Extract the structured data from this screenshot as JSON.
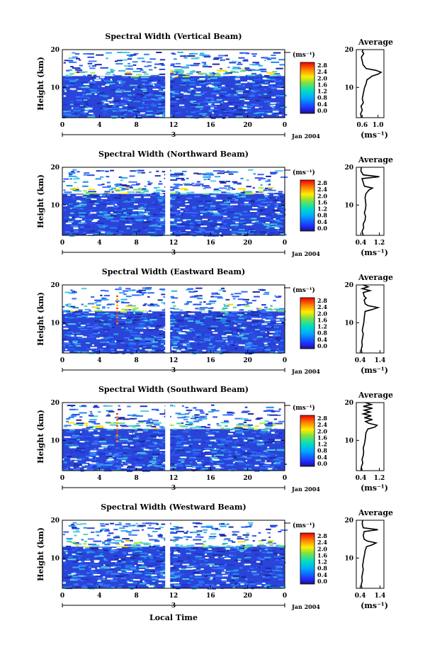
{
  "chart_data": [
    {
      "type": "heatmap",
      "title": "Spectral Width (Vertical Beam)",
      "ylabel": "Height (km)",
      "xticks": [
        "0",
        "4",
        "8",
        "12",
        "16",
        "20",
        "0"
      ],
      "yticks": [
        "20",
        "10"
      ],
      "date_tick": "3",
      "date_label": "Jan 2004",
      "ylim": [
        2,
        20
      ],
      "colorbar": {
        "unit": "(ms⁻¹)",
        "ticks": [
          "2.8",
          "2.4",
          "2.0",
          "1.6",
          "1.2",
          "0.8",
          "0.4",
          "0.0"
        ]
      },
      "average": {
        "title": "Average",
        "xlabel": "(ms⁻¹)",
        "xticks": [
          "0.6",
          "1.0"
        ],
        "xlim": [
          0.45,
          1.15
        ],
        "yticks": [
          "20",
          "10"
        ],
        "profile": [
          [
            2,
            0.58
          ],
          [
            3,
            0.56
          ],
          [
            4,
            0.6
          ],
          [
            5,
            0.57
          ],
          [
            6,
            0.63
          ],
          [
            7,
            0.6
          ],
          [
            8,
            0.62
          ],
          [
            9,
            0.64
          ],
          [
            10,
            0.66
          ],
          [
            11,
            0.7
          ],
          [
            12,
            0.72
          ],
          [
            13,
            0.85
          ],
          [
            13.5,
            1.0
          ],
          [
            14,
            1.08
          ],
          [
            14.5,
            0.95
          ],
          [
            15,
            0.7
          ],
          [
            16,
            0.62
          ],
          [
            17,
            0.6
          ],
          [
            18,
            0.58
          ],
          [
            19,
            0.64
          ],
          [
            19.5,
            0.6
          ],
          [
            20,
            0.62
          ]
        ]
      }
    },
    {
      "type": "heatmap",
      "title": "Spectral Width (Northward Beam)",
      "ylabel": "Height (km)",
      "xticks": [
        "0",
        "4",
        "8",
        "12",
        "16",
        "20",
        "0"
      ],
      "yticks": [
        "20",
        "10"
      ],
      "date_tick": "3",
      "date_label": "Jan 2004",
      "ylim": [
        2,
        20
      ],
      "colorbar": {
        "unit": "(ms⁻¹)",
        "ticks": [
          "2.8",
          "2.4",
          "2.0",
          "1.6",
          "1.2",
          "0.8",
          "0.4",
          "0.0"
        ]
      },
      "average": {
        "title": "Average",
        "xlabel": "(ms⁻¹)",
        "xticks": [
          "0.4",
          "1.2"
        ],
        "xlim": [
          0.2,
          1.4
        ],
        "yticks": [
          "20",
          "10"
        ],
        "profile": [
          [
            2,
            0.5
          ],
          [
            3,
            0.45
          ],
          [
            4,
            0.52
          ],
          [
            5,
            0.5
          ],
          [
            6,
            0.58
          ],
          [
            7,
            0.6
          ],
          [
            8,
            0.55
          ],
          [
            9,
            0.6
          ],
          [
            10,
            0.62
          ],
          [
            11,
            0.6
          ],
          [
            12,
            0.58
          ],
          [
            13,
            0.62
          ],
          [
            14,
            0.75
          ],
          [
            14.5,
            0.9
          ],
          [
            15,
            0.55
          ],
          [
            16,
            0.5
          ],
          [
            17,
            0.45
          ],
          [
            17.5,
            1.2
          ],
          [
            18,
            0.5
          ],
          [
            19,
            0.4
          ],
          [
            20,
            0.42
          ]
        ]
      }
    },
    {
      "type": "heatmap",
      "title": "Spectral Width (Eastward Beam)",
      "ylabel": "Height (km)",
      "xticks": [
        "0",
        "4",
        "8",
        "12",
        "16",
        "20",
        "0"
      ],
      "yticks": [
        "20",
        "10"
      ],
      "date_tick": "3",
      "date_label": "Jan 2004",
      "ylim": [
        2,
        20
      ],
      "colorbar": {
        "unit": "(ms⁻¹)",
        "ticks": [
          "2.8",
          "2.4",
          "2.0",
          "1.6",
          "1.2",
          "0.8",
          "0.4",
          "0.0"
        ]
      },
      "average": {
        "title": "Average",
        "xlabel": "(ms⁻¹)",
        "xticks": [
          "0.4",
          "1.4"
        ],
        "xlim": [
          0.2,
          1.6
        ],
        "yticks": [
          "20",
          "10"
        ],
        "profile": [
          [
            2,
            0.48
          ],
          [
            3,
            0.45
          ],
          [
            4,
            0.5
          ],
          [
            5,
            0.48
          ],
          [
            6,
            0.52
          ],
          [
            7,
            0.55
          ],
          [
            8,
            0.5
          ],
          [
            9,
            0.54
          ],
          [
            10,
            0.58
          ],
          [
            11,
            0.6
          ],
          [
            12,
            0.62
          ],
          [
            13,
            0.65
          ],
          [
            13.5,
            1.0
          ],
          [
            14,
            1.3
          ],
          [
            14.5,
            0.8
          ],
          [
            15,
            0.65
          ],
          [
            16,
            0.6
          ],
          [
            16.5,
            0.7
          ],
          [
            17,
            0.6
          ],
          [
            18,
            0.55
          ],
          [
            18.5,
            0.9
          ],
          [
            19,
            0.5
          ],
          [
            19.5,
            0.8
          ],
          [
            20,
            0.55
          ]
        ]
      }
    },
    {
      "type": "heatmap",
      "title": "Spectral Width (Southward Beam)",
      "ylabel": "Height (km)",
      "xticks": [
        "0",
        "4",
        "8",
        "12",
        "16",
        "20",
        "0"
      ],
      "yticks": [
        "20",
        "10"
      ],
      "date_tick": "3",
      "date_label": "Jan 2004",
      "ylim": [
        2,
        20
      ],
      "colorbar": {
        "unit": "(ms⁻¹)",
        "ticks": [
          "2.8",
          "2.4",
          "2.0",
          "1.6",
          "1.2",
          "0.8",
          "0.4",
          "0.0"
        ]
      },
      "average": {
        "title": "Average",
        "xlabel": "(ms⁻¹)",
        "xticks": [
          "0.4",
          "1.2"
        ],
        "xlim": [
          0.2,
          1.4
        ],
        "yticks": [
          "20",
          "10"
        ],
        "profile": [
          [
            2,
            0.45
          ],
          [
            3,
            0.42
          ],
          [
            4,
            0.48
          ],
          [
            5,
            0.45
          ],
          [
            6,
            0.5
          ],
          [
            7,
            0.52
          ],
          [
            8,
            0.5
          ],
          [
            9,
            0.55
          ],
          [
            10,
            0.58
          ],
          [
            11,
            0.6
          ],
          [
            12,
            0.62
          ],
          [
            13,
            0.7
          ],
          [
            13.5,
            1.0
          ],
          [
            14,
            1.1
          ],
          [
            14.5,
            0.75
          ],
          [
            15,
            0.6
          ],
          [
            15.5,
            0.9
          ],
          [
            16,
            0.55
          ],
          [
            16.5,
            0.85
          ],
          [
            17,
            0.5
          ],
          [
            17.5,
            0.8
          ],
          [
            18,
            0.55
          ],
          [
            18.5,
            0.9
          ],
          [
            19,
            0.5
          ],
          [
            19.5,
            0.85
          ],
          [
            20,
            0.6
          ]
        ]
      }
    },
    {
      "type": "heatmap",
      "title": "Spectral Width (Westward Beam)",
      "ylabel": "Height (km)",
      "xticks": [
        "0",
        "4",
        "8",
        "12",
        "16",
        "20",
        "0"
      ],
      "yticks": [
        "20",
        "10"
      ],
      "date_tick": "3",
      "date_label": "Jan 2004",
      "xlabel": "Local Time",
      "ylim": [
        2,
        20
      ],
      "colorbar": {
        "unit": "(ms⁻¹)",
        "ticks": [
          "2.8",
          "2.4",
          "2.0",
          "1.6",
          "1.2",
          "0.8",
          "0.4",
          "0.0"
        ]
      },
      "average": {
        "title": "Average",
        "xlabel": "(ms⁻¹)",
        "xticks": [
          "0.4",
          "1.4"
        ],
        "xlim": [
          0.2,
          1.6
        ],
        "yticks": [
          "20",
          "10"
        ],
        "profile": [
          [
            2,
            0.48
          ],
          [
            3,
            0.45
          ],
          [
            4,
            0.5
          ],
          [
            5,
            0.48
          ],
          [
            6,
            0.52
          ],
          [
            7,
            0.55
          ],
          [
            8,
            0.52
          ],
          [
            9,
            0.55
          ],
          [
            10,
            0.58
          ],
          [
            11,
            0.62
          ],
          [
            12,
            0.65
          ],
          [
            13,
            0.72
          ],
          [
            13.5,
            1.0
          ],
          [
            14,
            1.2
          ],
          [
            14.5,
            0.75
          ],
          [
            15,
            0.6
          ],
          [
            16,
            0.55
          ],
          [
            17,
            0.6
          ],
          [
            17.5,
            1.3
          ],
          [
            18,
            0.55
          ],
          [
            19,
            0.5
          ],
          [
            20,
            0.52
          ]
        ]
      }
    }
  ]
}
